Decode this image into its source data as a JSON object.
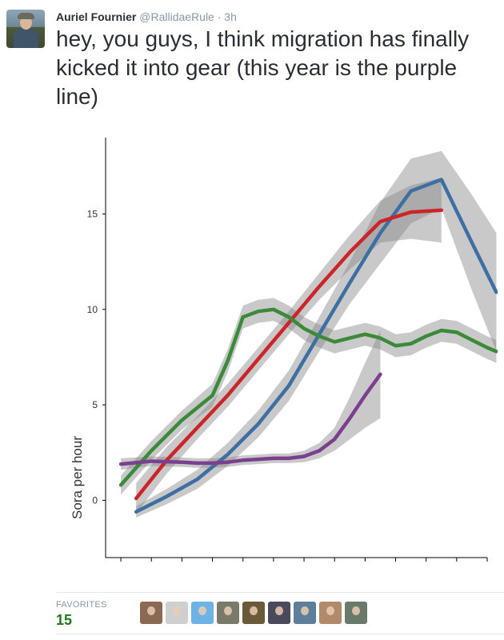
{
  "tweet": {
    "display_name": "Auriel Fournier",
    "handle": "@RallidaeRule",
    "separator": "·",
    "time": "3h",
    "text": "hey, you guys, I think migration has finally kicked it into gear (this year is the purple line)"
  },
  "favorites": {
    "label": "FAVORITES",
    "count": "15",
    "avatars": [
      {
        "name": "favoriter-avatar-1",
        "color": "#8a6a52"
      },
      {
        "name": "favoriter-avatar-2",
        "color": "#cfcfcf"
      },
      {
        "name": "favoriter-avatar-3",
        "color": "#6db3e6"
      },
      {
        "name": "favoriter-avatar-4",
        "color": "#7a7a6a"
      },
      {
        "name": "favoriter-avatar-5",
        "color": "#6b5a3a"
      },
      {
        "name": "favoriter-avatar-6",
        "color": "#4a4a5a"
      },
      {
        "name": "favoriter-avatar-7",
        "color": "#5d7f9a"
      },
      {
        "name": "favoriter-avatar-8",
        "color": "#b08a6a"
      },
      {
        "name": "favoriter-avatar-9",
        "color": "#6a7a6a"
      }
    ]
  },
  "chart_data": {
    "type": "line",
    "ylabel": "Sora per hour",
    "xlabel": "",
    "title": "",
    "ylim": [
      -3,
      19
    ],
    "xlim": [
      0,
      12.5
    ],
    "yticks": [
      0,
      5,
      10,
      15
    ],
    "xticks": [
      0.5,
      1.5,
      2.5,
      3.5,
      4.5,
      5.5,
      6.5,
      7.5,
      8.5,
      9.5,
      10.5,
      11.5,
      12.5
    ],
    "grid": false,
    "legend": "none",
    "band_color": "#888888",
    "series": [
      {
        "color": "#3d6fa3",
        "x": [
          1,
          2,
          3,
          4,
          5,
          6,
          7,
          8,
          9,
          10,
          11,
          12,
          12.8
        ],
        "y": [
          -0.6,
          0.2,
          1.1,
          2.4,
          4,
          6,
          8.7,
          11.4,
          14,
          16.2,
          16.8,
          13.5,
          10.9
        ],
        "upper": [
          -0.3,
          0.6,
          1.6,
          3,
          4.7,
          6.8,
          9.6,
          12.5,
          15.6,
          17.9,
          18.3,
          16,
          14
        ],
        "lower": [
          -0.9,
          -0.2,
          0.6,
          1.8,
          3.3,
          5.2,
          7.8,
          10.3,
          12.4,
          14.5,
          15.3,
          11,
          7.8
        ]
      },
      {
        "color": "#cc2529",
        "x": [
          1,
          2,
          3,
          4,
          5,
          6,
          7,
          8,
          9,
          10,
          11
        ],
        "y": [
          0.1,
          2.1,
          3.8,
          5.5,
          7.4,
          9.3,
          11.2,
          13,
          14.6,
          15.1,
          15.2
        ],
        "upper": [
          0.9,
          2.8,
          4.4,
          6.1,
          8,
          9.9,
          11.9,
          13.9,
          15.7,
          16.5,
          16.9
        ],
        "lower": [
          -0.7,
          1.4,
          3.2,
          4.9,
          6.8,
          8.7,
          10.5,
          12.1,
          13.5,
          13.7,
          13.5
        ]
      },
      {
        "color": "#3a8a3a",
        "x": [
          0.5,
          1.5,
          2.5,
          3.5,
          4,
          4.5,
          5,
          5.5,
          6,
          6.5,
          7,
          7.5,
          8,
          8.5,
          9,
          9.5,
          10,
          10.5,
          11,
          11.5,
          12,
          12.5,
          12.8
        ],
        "y": [
          0.8,
          2.6,
          4.2,
          5.5,
          7.3,
          9.6,
          9.9,
          10,
          9.6,
          9,
          8.6,
          8.3,
          8.5,
          8.7,
          8.5,
          8.1,
          8.2,
          8.6,
          8.9,
          8.8,
          8.4,
          8,
          7.8
        ],
        "upper": [
          1.3,
          3.1,
          4.7,
          6.1,
          7.9,
          10.2,
          10.5,
          10.6,
          10.2,
          9.6,
          9.2,
          8.9,
          9.1,
          9.3,
          9.1,
          8.7,
          8.8,
          9.2,
          9.5,
          9.4,
          9,
          8.6,
          8.4
        ],
        "lower": [
          0.3,
          2.1,
          3.7,
          4.9,
          6.7,
          9,
          9.3,
          9.4,
          9,
          8.4,
          8,
          7.7,
          7.9,
          8.1,
          7.9,
          7.5,
          7.6,
          8,
          8.3,
          8.2,
          7.8,
          7.4,
          7.2
        ]
      },
      {
        "color": "#7b3f8f",
        "x": [
          0.5,
          1.5,
          2.5,
          3,
          3.5,
          4,
          4.5,
          5,
          5.5,
          6,
          6.5,
          7,
          7.5,
          8,
          8.5,
          9
        ],
        "y": [
          1.9,
          2.05,
          2,
          1.95,
          1.95,
          2,
          2.1,
          2.15,
          2.2,
          2.2,
          2.3,
          2.6,
          3.2,
          4.3,
          5.5,
          6.6
        ],
        "upper": [
          2.2,
          2.3,
          2.25,
          2.2,
          2.2,
          2.25,
          2.35,
          2.4,
          2.45,
          2.45,
          2.6,
          3,
          3.8,
          5.4,
          7.2,
          8.9
        ],
        "lower": [
          1.6,
          1.8,
          1.75,
          1.7,
          1.7,
          1.75,
          1.85,
          1.9,
          1.95,
          1.95,
          2,
          2.2,
          2.6,
          3.2,
          3.8,
          4.3
        ]
      }
    ]
  }
}
